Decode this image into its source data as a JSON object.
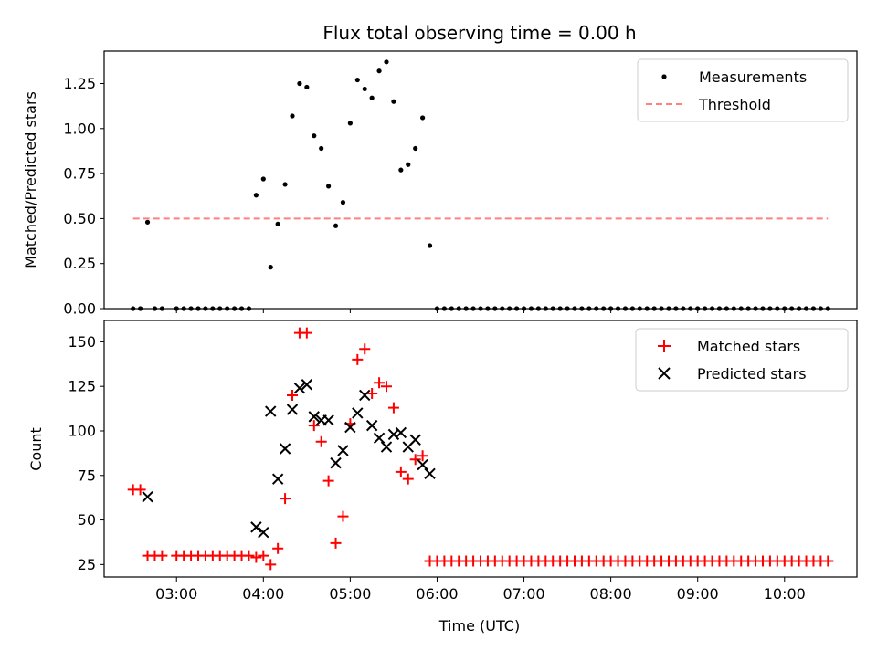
{
  "chart_data": {
    "title": "Flux total observing time = 0.00 h",
    "xlabel": "Time (UTC)",
    "x_unit": "hours UTC",
    "xlim": [
      "02:10",
      "10:50"
    ],
    "x_ticks": [
      "03:00",
      "04:00",
      "05:00",
      "06:00",
      "07:00",
      "08:00",
      "09:00",
      "10:00"
    ],
    "colors": {
      "matched": "#ff0000",
      "predicted": "#000000",
      "measurement": "#000000",
      "threshold": "#ff8080"
    },
    "panels": [
      {
        "type": "scatter",
        "ylabel": "Matched/Predicted stars",
        "ylim": [
          0,
          1.43
        ],
        "y_ticks": [
          "0.00",
          "0.25",
          "0.50",
          "0.75",
          "1.00",
          "1.25"
        ],
        "legend_position": "upper right",
        "legend": [
          "Measurements",
          "Threshold"
        ],
        "series": [
          {
            "name": "Measurements",
            "marker": "dot",
            "points": [
              [
                "02:30",
                0
              ],
              [
                "02:35",
                0
              ],
              [
                "02:40",
                0.48
              ],
              [
                "02:45",
                0
              ],
              [
                "02:50",
                0
              ],
              [
                "03:00",
                0
              ],
              [
                "03:05",
                0
              ],
              [
                "03:10",
                0
              ],
              [
                "03:15",
                0
              ],
              [
                "03:20",
                0
              ],
              [
                "03:25",
                0
              ],
              [
                "03:30",
                0
              ],
              [
                "03:35",
                0
              ],
              [
                "03:40",
                0
              ],
              [
                "03:45",
                0
              ],
              [
                "03:50",
                0
              ],
              [
                "03:55",
                0.63
              ],
              [
                "04:00",
                0.72
              ],
              [
                "04:05",
                0.23
              ],
              [
                "04:10",
                0.47
              ],
              [
                "04:15",
                0.69
              ],
              [
                "04:20",
                1.07
              ],
              [
                "04:25",
                1.25
              ],
              [
                "04:30",
                1.23
              ],
              [
                "04:35",
                0.96
              ],
              [
                "04:40",
                0.89
              ],
              [
                "04:45",
                0.68
              ],
              [
                "04:50",
                0.46
              ],
              [
                "04:55",
                0.59
              ],
              [
                "05:00",
                1.03
              ],
              [
                "05:05",
                1.27
              ],
              [
                "05:10",
                1.22
              ],
              [
                "05:15",
                1.17
              ],
              [
                "05:20",
                1.32
              ],
              [
                "05:25",
                1.37
              ],
              [
                "05:30",
                1.15
              ],
              [
                "05:35",
                0.77
              ],
              [
                "05:40",
                0.8
              ],
              [
                "05:45",
                0.89
              ],
              [
                "05:50",
                1.06
              ],
              [
                "05:55",
                0.35
              ],
              [
                "06:00",
                0
              ],
              [
                "06:05",
                0
              ],
              [
                "06:10",
                0
              ],
              [
                "06:15",
                0
              ],
              [
                "06:20",
                0
              ],
              [
                "06:25",
                0
              ],
              [
                "06:30",
                0
              ],
              [
                "06:35",
                0
              ],
              [
                "06:40",
                0
              ],
              [
                "06:45",
                0
              ],
              [
                "06:50",
                0
              ],
              [
                "06:55",
                0
              ],
              [
                "07:00",
                0
              ],
              [
                "07:05",
                0
              ],
              [
                "07:10",
                0
              ],
              [
                "07:15",
                0
              ],
              [
                "07:20",
                0
              ],
              [
                "07:25",
                0
              ],
              [
                "07:30",
                0
              ],
              [
                "07:35",
                0
              ],
              [
                "07:40",
                0
              ],
              [
                "07:45",
                0
              ],
              [
                "07:50",
                0
              ],
              [
                "07:55",
                0
              ],
              [
                "08:00",
                0
              ],
              [
                "08:05",
                0
              ],
              [
                "08:10",
                0
              ],
              [
                "08:15",
                0
              ],
              [
                "08:20",
                0
              ],
              [
                "08:25",
                0
              ],
              [
                "08:30",
                0
              ],
              [
                "08:35",
                0
              ],
              [
                "08:40",
                0
              ],
              [
                "08:45",
                0
              ],
              [
                "08:50",
                0
              ],
              [
                "08:55",
                0
              ],
              [
                "09:00",
                0
              ],
              [
                "09:05",
                0
              ],
              [
                "09:10",
                0
              ],
              [
                "09:15",
                0
              ],
              [
                "09:20",
                0
              ],
              [
                "09:25",
                0
              ],
              [
                "09:30",
                0
              ],
              [
                "09:35",
                0
              ],
              [
                "09:40",
                0
              ],
              [
                "09:45",
                0
              ],
              [
                "09:50",
                0
              ],
              [
                "09:55",
                0
              ],
              [
                "10:00",
                0
              ],
              [
                "10:05",
                0
              ],
              [
                "10:10",
                0
              ],
              [
                "10:15",
                0
              ],
              [
                "10:20",
                0
              ],
              [
                "10:25",
                0
              ],
              [
                "10:30",
                0
              ]
            ]
          },
          {
            "name": "Threshold",
            "style": "dashed",
            "x": [
              "02:30",
              "10:30"
            ],
            "y": [
              0.5,
              0.5
            ]
          }
        ]
      },
      {
        "type": "scatter",
        "ylabel": "Count",
        "ylim": [
          18,
          162
        ],
        "y_ticks": [
          "25",
          "50",
          "75",
          "100",
          "125",
          "150"
        ],
        "legend_position": "upper right",
        "legend": [
          "Matched stars",
          "Predicted stars"
        ],
        "series": [
          {
            "name": "Matched stars",
            "marker": "plus",
            "points": [
              [
                "02:30",
                67
              ],
              [
                "02:35",
                67
              ],
              [
                "02:40",
                30
              ],
              [
                "02:45",
                30
              ],
              [
                "02:50",
                30
              ],
              [
                "03:00",
                30
              ],
              [
                "03:05",
                30
              ],
              [
                "03:10",
                30
              ],
              [
                "03:15",
                30
              ],
              [
                "03:20",
                30
              ],
              [
                "03:25",
                30
              ],
              [
                "03:30",
                30
              ],
              [
                "03:35",
                30
              ],
              [
                "03:40",
                30
              ],
              [
                "03:45",
                30
              ],
              [
                "03:50",
                30
              ],
              [
                "03:55",
                29
              ],
              [
                "04:00",
                30
              ],
              [
                "04:05",
                25
              ],
              [
                "04:10",
                34
              ],
              [
                "04:15",
                62
              ],
              [
                "04:20",
                120
              ],
              [
                "04:25",
                155
              ],
              [
                "04:30",
                155
              ],
              [
                "04:35",
                103
              ],
              [
                "04:40",
                94
              ],
              [
                "04:45",
                72
              ],
              [
                "04:50",
                37
              ],
              [
                "04:55",
                52
              ],
              [
                "05:00",
                104
              ],
              [
                "05:05",
                140
              ],
              [
                "05:10",
                146
              ],
              [
                "05:15",
                121
              ],
              [
                "05:20",
                127
              ],
              [
                "05:25",
                125
              ],
              [
                "05:30",
                113
              ],
              [
                "05:35",
                77
              ],
              [
                "05:40",
                73
              ],
              [
                "05:45",
                84
              ],
              [
                "05:50",
                86
              ],
              [
                "05:55",
                27
              ],
              [
                "06:00",
                27
              ],
              [
                "06:05",
                27
              ],
              [
                "06:10",
                27
              ],
              [
                "06:15",
                27
              ],
              [
                "06:20",
                27
              ],
              [
                "06:25",
                27
              ],
              [
                "06:30",
                27
              ],
              [
                "06:35",
                27
              ],
              [
                "06:40",
                27
              ],
              [
                "06:45",
                27
              ],
              [
                "06:50",
                27
              ],
              [
                "06:55",
                27
              ],
              [
                "07:00",
                27
              ],
              [
                "07:05",
                27
              ],
              [
                "07:10",
                27
              ],
              [
                "07:15",
                27
              ],
              [
                "07:20",
                27
              ],
              [
                "07:25",
                27
              ],
              [
                "07:30",
                27
              ],
              [
                "07:35",
                27
              ],
              [
                "07:40",
                27
              ],
              [
                "07:45",
                27
              ],
              [
                "07:50",
                27
              ],
              [
                "07:55",
                27
              ],
              [
                "08:00",
                27
              ],
              [
                "08:05",
                27
              ],
              [
                "08:10",
                27
              ],
              [
                "08:15",
                27
              ],
              [
                "08:20",
                27
              ],
              [
                "08:25",
                27
              ],
              [
                "08:30",
                27
              ],
              [
                "08:35",
                27
              ],
              [
                "08:40",
                27
              ],
              [
                "08:45",
                27
              ],
              [
                "08:50",
                27
              ],
              [
                "08:55",
                27
              ],
              [
                "09:00",
                27
              ],
              [
                "09:05",
                27
              ],
              [
                "09:10",
                27
              ],
              [
                "09:15",
                27
              ],
              [
                "09:20",
                27
              ],
              [
                "09:25",
                27
              ],
              [
                "09:30",
                27
              ],
              [
                "09:35",
                27
              ],
              [
                "09:40",
                27
              ],
              [
                "09:45",
                27
              ],
              [
                "09:50",
                27
              ],
              [
                "09:55",
                27
              ],
              [
                "10:00",
                27
              ],
              [
                "10:05",
                27
              ],
              [
                "10:10",
                27
              ],
              [
                "10:15",
                27
              ],
              [
                "10:20",
                27
              ],
              [
                "10:25",
                27
              ],
              [
                "10:30",
                27
              ]
            ]
          },
          {
            "name": "Predicted stars",
            "marker": "x",
            "points": [
              [
                "02:40",
                63
              ],
              [
                "03:55",
                46
              ],
              [
                "04:00",
                43
              ],
              [
                "04:05",
                111
              ],
              [
                "04:10",
                73
              ],
              [
                "04:15",
                90
              ],
              [
                "04:20",
                112
              ],
              [
                "04:25",
                124
              ],
              [
                "04:30",
                126
              ],
              [
                "04:35",
                108
              ],
              [
                "04:40",
                106
              ],
              [
                "04:45",
                106
              ],
              [
                "04:50",
                82
              ],
              [
                "04:55",
                89
              ],
              [
                "05:00",
                102
              ],
              [
                "05:05",
                110
              ],
              [
                "05:10",
                120
              ],
              [
                "05:15",
                103
              ],
              [
                "05:20",
                96
              ],
              [
                "05:25",
                91
              ],
              [
                "05:30",
                98
              ],
              [
                "05:35",
                99
              ],
              [
                "05:40",
                91
              ],
              [
                "05:45",
                95
              ],
              [
                "05:50",
                81
              ],
              [
                "05:55",
                76
              ]
            ]
          }
        ]
      }
    ]
  }
}
